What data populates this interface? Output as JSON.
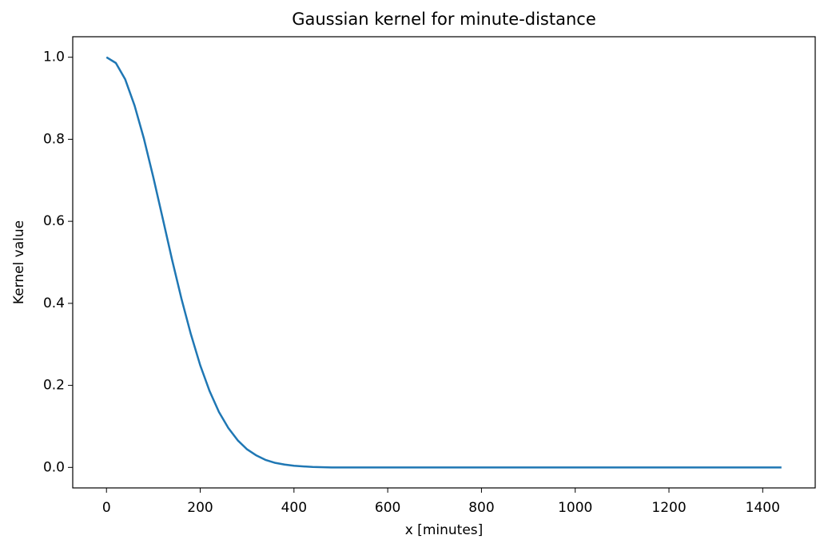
{
  "chart_data": {
    "type": "line",
    "title": "Gaussian kernel for minute-distance",
    "x_label": "x [minutes]",
    "y_label": "Kernel value",
    "x": [
      0,
      20,
      40,
      60,
      80,
      100,
      120,
      140,
      160,
      180,
      200,
      220,
      240,
      260,
      280,
      300,
      320,
      340,
      360,
      380,
      400,
      440,
      480,
      600,
      800,
      1000,
      1200,
      1440
    ],
    "series": [
      {
        "name": "kernel",
        "color": "#1f77b4",
        "values": [
          1,
          0.986,
          0.946,
          0.882,
          0.801,
          0.707,
          0.607,
          0.506,
          0.411,
          0.325,
          0.249,
          0.186,
          0.135,
          0.096,
          0.066,
          0.044,
          0.029,
          0.018,
          0.011,
          0.007,
          0.004,
          0.001,
          0,
          0,
          0,
          0,
          0,
          0
        ]
      }
    ],
    "xlim": [
      -72,
      1512
    ],
    "ylim": [
      -0.05,
      1.05
    ],
    "xticks": [
      0,
      200,
      400,
      600,
      800,
      1000,
      1200,
      1400
    ],
    "yticks": [
      {
        "value": 0,
        "label": "0.0"
      },
      {
        "value": 0.2,
        "label": "0.2"
      },
      {
        "value": 0.4,
        "label": "0.4"
      },
      {
        "value": 0.6,
        "label": "0.6"
      },
      {
        "value": 0.8,
        "label": "0.8"
      },
      {
        "value": 1,
        "label": "1.0"
      }
    ],
    "grid": false
  }
}
